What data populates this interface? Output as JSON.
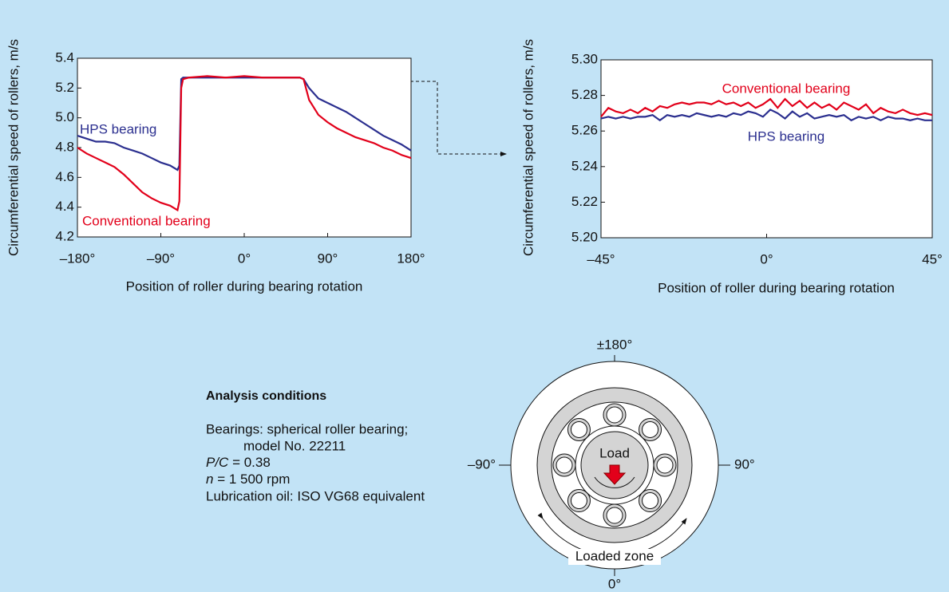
{
  "chart_data": [
    {
      "type": "line",
      "x_label": "Position of roller during bearing rotation",
      "y_label": "Circumferential speed of rollers, m/s",
      "x": [
        -180,
        -170,
        -160,
        -150,
        -140,
        -130,
        -120,
        -110,
        -100,
        -90,
        -80,
        -72,
        -70,
        -68,
        -66,
        -60,
        -40,
        -20,
        0,
        20,
        40,
        60,
        64,
        70,
        80,
        90,
        100,
        110,
        120,
        130,
        140,
        150,
        160,
        170,
        180
      ],
      "series": [
        {
          "name": "HPS bearing",
          "color": "#2b2f8f",
          "values": [
            4.88,
            4.86,
            4.84,
            4.84,
            4.83,
            4.8,
            4.78,
            4.76,
            4.73,
            4.7,
            4.68,
            4.65,
            4.68,
            5.26,
            5.27,
            5.27,
            5.27,
            5.27,
            5.27,
            5.27,
            5.27,
            5.27,
            5.26,
            5.2,
            5.13,
            5.1,
            5.07,
            5.04,
            5.0,
            4.96,
            4.92,
            4.88,
            4.85,
            4.82,
            4.78
          ]
        },
        {
          "name": "Conventional bearing",
          "color": "#e2001a",
          "values": [
            4.8,
            4.76,
            4.73,
            4.7,
            4.67,
            4.62,
            4.56,
            4.5,
            4.46,
            4.43,
            4.41,
            4.38,
            4.44,
            5.2,
            5.26,
            5.27,
            5.28,
            5.27,
            5.28,
            5.27,
            5.27,
            5.27,
            5.26,
            5.12,
            5.02,
            4.97,
            4.93,
            4.9,
            4.87,
            4.85,
            4.83,
            4.8,
            4.78,
            4.75,
            4.73
          ]
        }
      ],
      "xlim": [
        -180,
        180
      ],
      "xticks": [
        {
          "value": -180,
          "label": "–180°"
        },
        {
          "value": -90,
          "label": "–90°"
        },
        {
          "value": 0,
          "label": "0°"
        },
        {
          "value": 90,
          "label": "90°"
        },
        {
          "value": 180,
          "label": "180°"
        }
      ],
      "ylim": [
        4.2,
        5.4
      ],
      "yticks": [
        4.2,
        4.4,
        4.6,
        4.8,
        {
          "value": 5,
          "label": "5.0"
        },
        5.2,
        5.4
      ]
    },
    {
      "type": "line",
      "x_label": "Position of roller during bearing rotation",
      "y_label": "Circumferential speed of rollers, m/s",
      "x": [
        -45,
        -43,
        -41,
        -39,
        -37,
        -35,
        -33,
        -31,
        -29,
        -27,
        -25,
        -23,
        -21,
        -19,
        -17,
        -15,
        -13,
        -11,
        -9,
        -7,
        -5,
        -3,
        -1,
        1,
        3,
        5,
        7,
        9,
        11,
        13,
        15,
        17,
        19,
        21,
        23,
        25,
        27,
        29,
        31,
        33,
        35,
        37,
        39,
        41,
        43,
        45
      ],
      "series": [
        {
          "name": "Conventional bearing",
          "color": "#e2001a",
          "values": [
            5.268,
            5.273,
            5.271,
            5.27,
            5.272,
            5.27,
            5.273,
            5.271,
            5.274,
            5.273,
            5.275,
            5.276,
            5.275,
            5.276,
            5.276,
            5.275,
            5.277,
            5.275,
            5.276,
            5.274,
            5.276,
            5.273,
            5.275,
            5.278,
            5.273,
            5.278,
            5.274,
            5.277,
            5.273,
            5.276,
            5.273,
            5.275,
            5.272,
            5.276,
            5.274,
            5.272,
            5.275,
            5.27,
            5.273,
            5.271,
            5.27,
            5.272,
            5.27,
            5.269,
            5.27,
            5.269
          ]
        },
        {
          "name": "HPS bearing",
          "color": "#2b2f8f",
          "values": [
            5.267,
            5.268,
            5.267,
            5.268,
            5.267,
            5.268,
            5.268,
            5.269,
            5.266,
            5.269,
            5.268,
            5.269,
            5.268,
            5.27,
            5.269,
            5.268,
            5.269,
            5.268,
            5.27,
            5.269,
            5.271,
            5.27,
            5.268,
            5.272,
            5.27,
            5.267,
            5.271,
            5.268,
            5.27,
            5.267,
            5.268,
            5.269,
            5.268,
            5.269,
            5.266,
            5.268,
            5.267,
            5.268,
            5.266,
            5.268,
            5.267,
            5.267,
            5.266,
            5.267,
            5.266,
            5.266
          ]
        }
      ],
      "xlim": [
        -45,
        45
      ],
      "xticks": [
        {
          "value": -45,
          "label": "–45°"
        },
        {
          "value": 0,
          "label": "0°"
        },
        {
          "value": 45,
          "label": "45°"
        }
      ],
      "ylim": [
        5.2,
        5.3
      ],
      "yticks": [
        {
          "value": 5.2,
          "label": "5.20"
        },
        5.22,
        5.24,
        5.26,
        5.28,
        {
          "value": 5.3,
          "label": "5.30"
        }
      ]
    }
  ],
  "conditions": {
    "title": "Analysis conditions",
    "lines": [
      "Bearings: spherical roller bearing;",
      "model No. 22211",
      {
        "italic": "P/C",
        "rest": " = 0.38"
      },
      {
        "italic": "n",
        "rest": " = 1 500 rpm"
      },
      "Lubrication oil: ISO VG68 equivalent"
    ]
  },
  "diagram": {
    "top": "±180°",
    "left": "–90°",
    "right": "90°",
    "bottom": "0°",
    "load": "Load",
    "zone": "Loaded zone"
  }
}
